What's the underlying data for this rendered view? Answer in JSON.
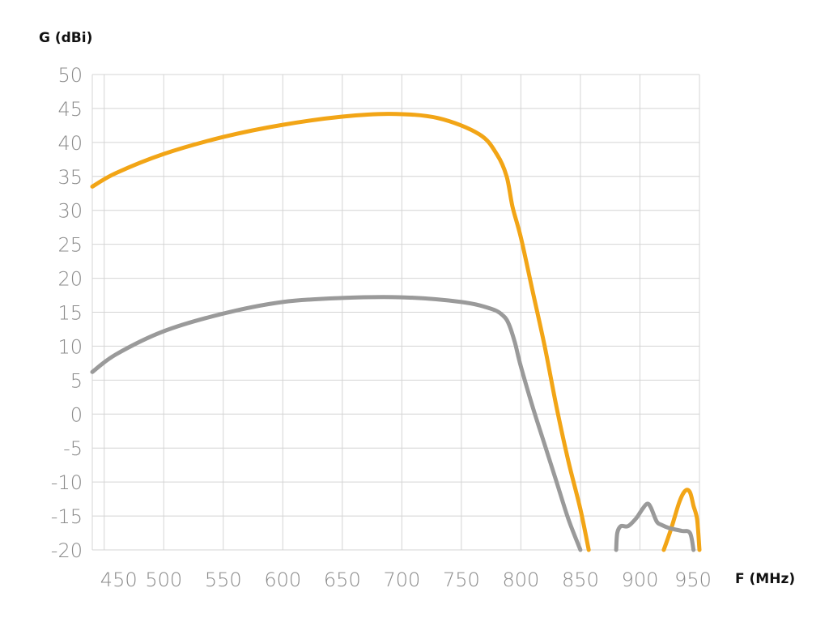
{
  "chart_data": {
    "type": "line",
    "ylabel": "G (dBi)",
    "xlabel": "F (MHz)",
    "xlim": [
      440,
      950
    ],
    "ylim": [
      -20,
      50
    ],
    "x_ticks": [
      450,
      500,
      550,
      600,
      650,
      700,
      750,
      800,
      850,
      900,
      950
    ],
    "y_ticks": [
      50,
      45,
      40,
      35,
      30,
      25,
      20,
      15,
      10,
      5,
      0,
      -5,
      -10,
      -15,
      -20
    ],
    "grid": true,
    "series": [
      {
        "color": "#f2a516",
        "segments": [
          [
            [
              440,
              33.5
            ],
            [
              460,
              35.5
            ],
            [
              500,
              38.3
            ],
            [
              550,
              40.8
            ],
            [
              600,
              42.6
            ],
            [
              650,
              43.8
            ],
            [
              690,
              44.2
            ],
            [
              730,
              43.6
            ],
            [
              765,
              41.2
            ],
            [
              780,
              38.2
            ],
            [
              788,
              35
            ],
            [
              793,
              30.5
            ],
            [
              800,
              26
            ],
            [
              810,
              18
            ],
            [
              820,
              10
            ],
            [
              830,
              1
            ],
            [
              840,
              -7
            ],
            [
              850,
              -14
            ],
            [
              857,
              -20
            ]
          ],
          [
            [
              920,
              -20
            ],
            [
              926,
              -17
            ],
            [
              933,
              -13
            ],
            [
              938,
              -11.3
            ],
            [
              942,
              -11.5
            ],
            [
              945,
              -13.5
            ],
            [
              948,
              -15.5
            ],
            [
              950,
              -20
            ]
          ]
        ]
      },
      {
        "color": "#9a9a9a",
        "segments": [
          [
            [
              440,
              6.2
            ],
            [
              460,
              8.8
            ],
            [
              500,
              12.2
            ],
            [
              550,
              14.8
            ],
            [
              600,
              16.5
            ],
            [
              650,
              17.1
            ],
            [
              700,
              17.2
            ],
            [
              750,
              16.5
            ],
            [
              775,
              15.5
            ],
            [
              785,
              14.5
            ],
            [
              790,
              13.2
            ],
            [
              795,
              10.5
            ],
            [
              800,
              7
            ],
            [
              810,
              1
            ],
            [
              820,
              -4.5
            ],
            [
              830,
              -10
            ],
            [
              840,
              -15.5
            ],
            [
              850,
              -20
            ]
          ],
          [
            [
              880,
              -20
            ],
            [
              881,
              -17.5
            ],
            [
              884,
              -16.5
            ],
            [
              890,
              -16.5
            ],
            [
              897,
              -15.3
            ],
            [
              902,
              -14
            ],
            [
              906,
              -13.2
            ],
            [
              909,
              -13.7
            ],
            [
              914,
              -15.8
            ],
            [
              918,
              -16.3
            ],
            [
              925,
              -16.8
            ],
            [
              935,
              -17.2
            ],
            [
              942,
              -17.5
            ],
            [
              945,
              -20
            ]
          ]
        ]
      }
    ]
  }
}
